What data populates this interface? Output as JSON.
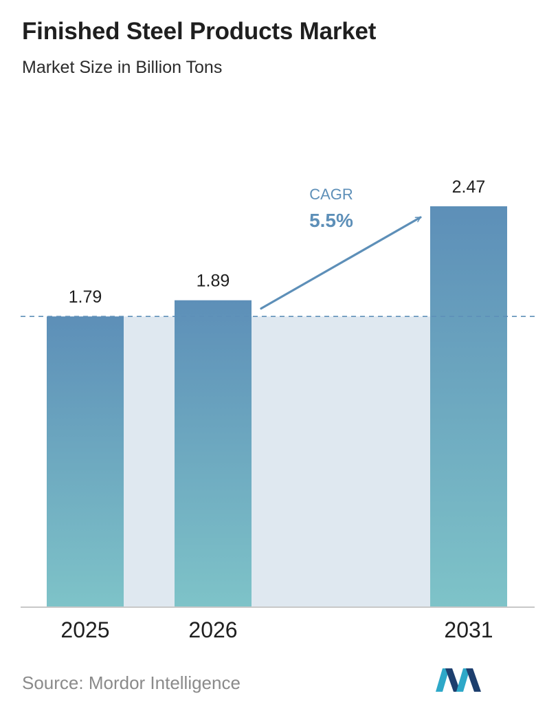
{
  "title": "Finished Steel Products Market",
  "subtitle": "Market Size in Billion Tons",
  "source": "Source:  Mordor Intelligence",
  "colors": {
    "bar_top": "#5d8fb8",
    "bar_bottom": "#7ec3c8",
    "band": "#dfe8f0",
    "arrow": "#5d8fb8",
    "dashed_line": "#5d8fb8",
    "axis": "#c8c8c8"
  },
  "chart_data": {
    "type": "bar",
    "categories": [
      "2025",
      "2026",
      "2031"
    ],
    "values": [
      1.79,
      1.89,
      2.47
    ],
    "value_labels": [
      "1.79",
      "1.89",
      "2.47"
    ],
    "annotation": {
      "label": "CAGR",
      "value": "5.5%",
      "from": "2026",
      "to": "2031"
    },
    "reference_line": 1.79,
    "ylim": [
      0,
      2.47
    ],
    "xlabel": "",
    "ylabel": ""
  }
}
